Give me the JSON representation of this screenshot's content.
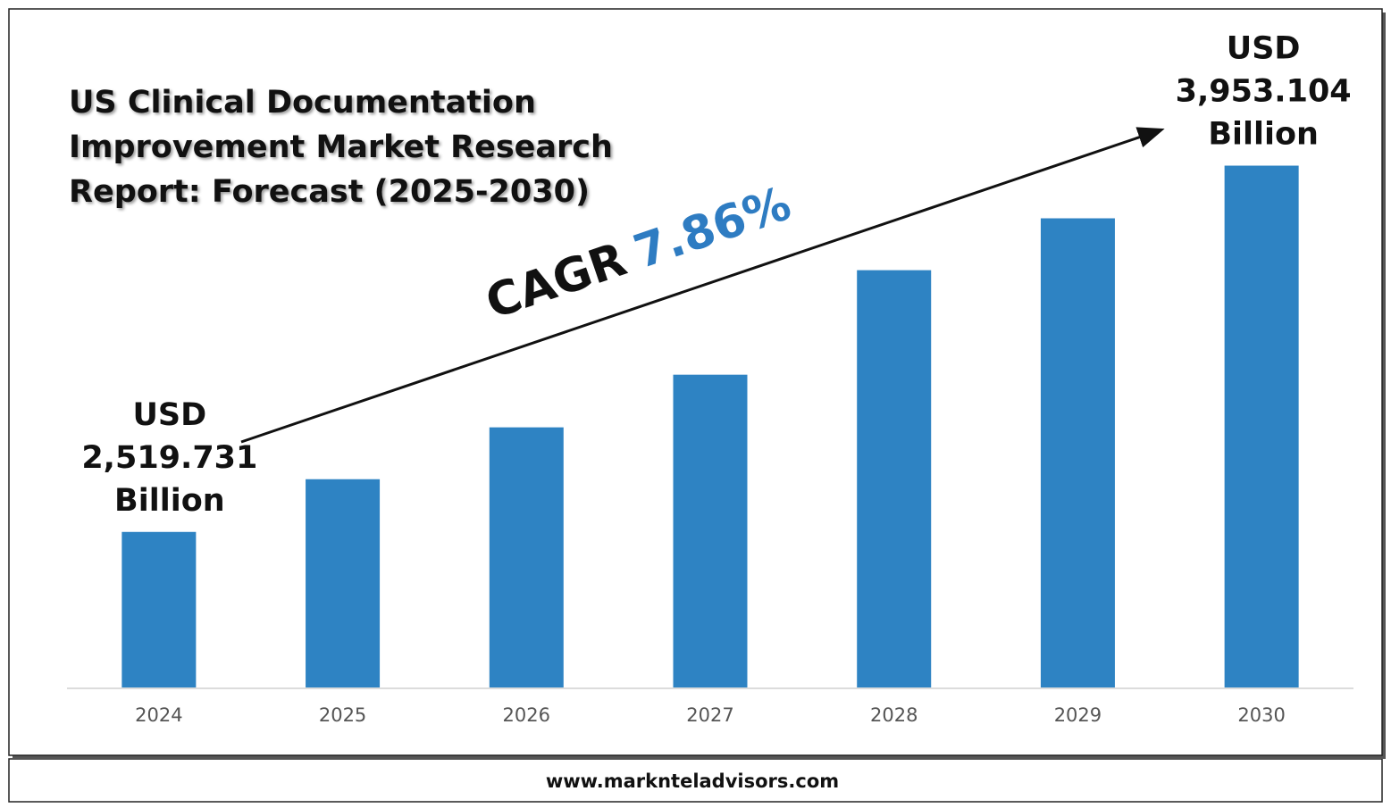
{
  "chart_data": {
    "type": "bar",
    "title": "US Clinical Documentation Improvement Market Research Report: Forecast (2025-2030)",
    "categories": [
      "2024",
      "2025",
      "2026",
      "2027",
      "2028",
      "2029",
      "2030"
    ],
    "values": [
      2519.731,
      2726,
      2929,
      3135,
      3544,
      3747,
      3953.104
    ],
    "value_labels": [
      "USD 2,519.731 Billion",
      null,
      null,
      null,
      null,
      null,
      "USD 3,953.104 Billion"
    ],
    "color": "#2e83c3",
    "ylim": [
      1911,
      4500
    ],
    "cagr_label": "CAGR",
    "cagr": "7.86%",
    "cagr_color": "#2e7cc2",
    "source": "www.marknteladvisors.com"
  }
}
